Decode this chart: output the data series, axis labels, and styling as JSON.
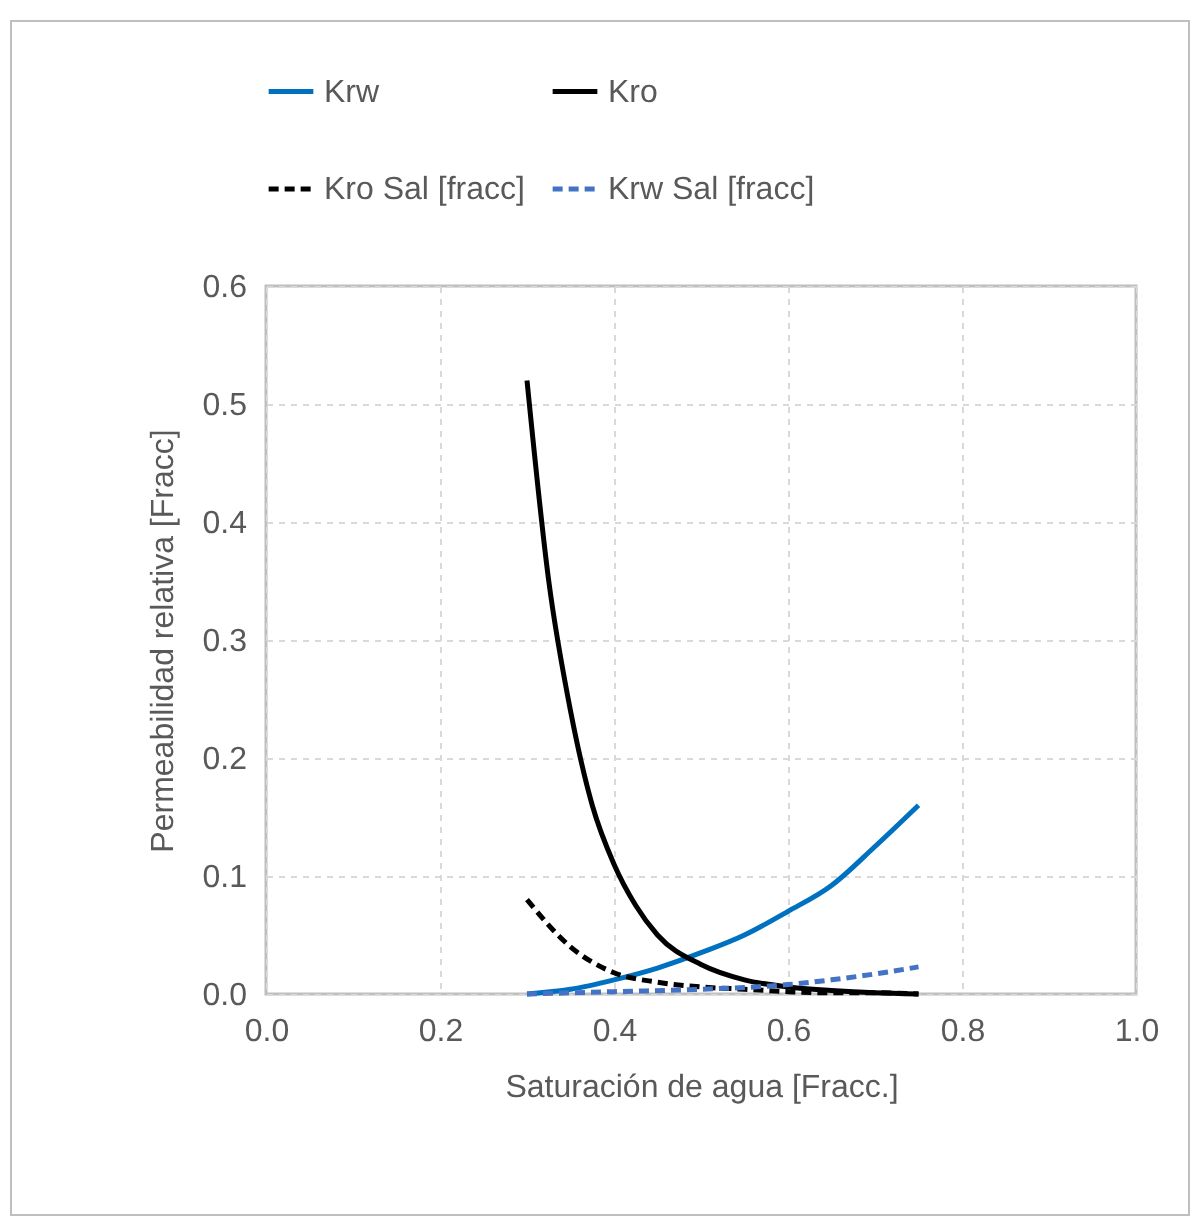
{
  "chart_data": {
    "type": "line",
    "xlabel": "Saturación de agua [Fracc.]",
    "ylabel": "Permeabilidad relativa [Fracc]",
    "xlim": [
      0,
      1
    ],
    "xticks": [
      {
        "value": 0,
        "label": "0.0"
      },
      {
        "value": 0.2,
        "label": "0.2"
      },
      {
        "value": 0.4,
        "label": "0.4"
      },
      {
        "value": 0.6,
        "label": "0.6"
      },
      {
        "value": 0.8,
        "label": "0.8"
      },
      {
        "value": 1,
        "label": "1.0"
      }
    ],
    "ylim": [
      0,
      0.6
    ],
    "yticks": [
      {
        "value": 0,
        "label": "0.0"
      },
      0.1,
      0.2,
      0.3,
      0.4,
      0.5,
      0.6
    ],
    "grid": true,
    "legend": "top",
    "marker": "none",
    "series": [
      {
        "name": "Krw",
        "color": "#0070c0",
        "line_style": "solid",
        "x": [
          0.3,
          0.35,
          0.4,
          0.45,
          0.5,
          0.55,
          0.6,
          0.65,
          0.7,
          0.75
        ],
        "values": [
          0,
          0.004,
          0.012,
          0.022,
          0.035,
          0.05,
          0.07,
          0.092,
          0.125,
          0.16
        ]
      },
      {
        "name": "Kro",
        "color": "#000000",
        "line_style": "solid",
        "x": [
          0.3,
          0.325,
          0.35,
          0.375,
          0.4,
          0.425,
          0.45,
          0.5,
          0.55,
          0.6,
          0.65,
          0.7,
          0.75
        ],
        "values": [
          0.52,
          0.35,
          0.24,
          0.16,
          0.11,
          0.075,
          0.05,
          0.025,
          0.012,
          0.006,
          0.003,
          0.001,
          0
        ]
      },
      {
        "name": "Kro Sal [fracc]",
        "color": "#000000",
        "line_style": "dashed",
        "x": [
          0.3,
          0.35,
          0.4,
          0.45,
          0.5,
          0.55,
          0.6,
          0.65,
          0.7,
          0.75
        ],
        "values": [
          0.08,
          0.04,
          0.018,
          0.01,
          0.006,
          0.004,
          0.002,
          0.001,
          0.001,
          0
        ]
      },
      {
        "name": "Krw Sal [fracc]",
        "color": "#4472c4",
        "line_style": "dashed",
        "x": [
          0.3,
          0.4,
          0.5,
          0.6,
          0.65,
          0.7,
          0.75
        ],
        "values": [
          0,
          0.002,
          0.004,
          0.008,
          0.012,
          0.017,
          0.023
        ]
      }
    ]
  }
}
